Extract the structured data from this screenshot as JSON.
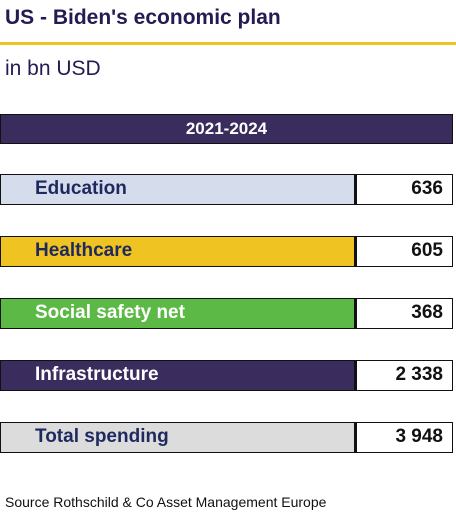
{
  "chart_data": {
    "type": "table",
    "title": "US - Biden's economic plan",
    "subtitle": "in bn USD",
    "period": "2021-2024",
    "categories": [
      "Education",
      "Healthcare",
      "Social safety net",
      "Infrastructure",
      "Total spending"
    ],
    "values": [
      636,
      605,
      368,
      2338,
      3948
    ],
    "value_labels": [
      "636",
      "605",
      "368",
      "2 338",
      "3 948"
    ],
    "row_colors": [
      "#d5dcec",
      "#efc321",
      "#5cb946",
      "#3a2d5e",
      "#dcdcdc"
    ],
    "row_text_colors": [
      "#1e2a5e",
      "#1e2a5e",
      "#ffffff",
      "#ffffff",
      "#1e2a5e"
    ],
    "source": "Source Rothschild & Co Asset Management Europe"
  },
  "colors": {
    "title": "#231b52",
    "accent_rule": "#efc321",
    "period_bar": "#3a2d5e"
  }
}
